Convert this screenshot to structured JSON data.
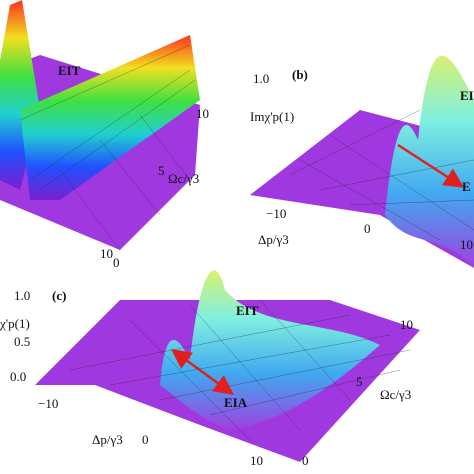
{
  "panels": [
    {
      "labels": {
        "eit": "EIT",
        "omega_ticks": [
          "10",
          "5"
        ],
        "omega_axis": "Ωc/γ3",
        "delta_ticks": [
          "10",
          "0"
        ]
      }
    },
    {
      "panel_label": "(b)",
      "z_axis": "Imχ'p(1)",
      "z_ticks": [
        "1.0"
      ],
      "labels": {
        "eit": "EI",
        "eia": "E"
      },
      "delta_ticks": [
        "−10",
        "0",
        "10"
      ],
      "delta_axis": "Δp/γ3"
    },
    {
      "panel_label": "(c)",
      "z_axis": "χ'p(1)",
      "z_ticks": [
        "1.0",
        "0.5",
        "0.0"
      ],
      "labels": {
        "eit": "EIT",
        "eia": "EIA"
      },
      "delta_ticks": [
        "−10",
        "0",
        "10"
      ],
      "delta_axis": "Δp/γ3",
      "omega_ticks": [
        "10",
        "5",
        "0"
      ],
      "omega_axis": "Ωc/γ3"
    }
  ]
}
